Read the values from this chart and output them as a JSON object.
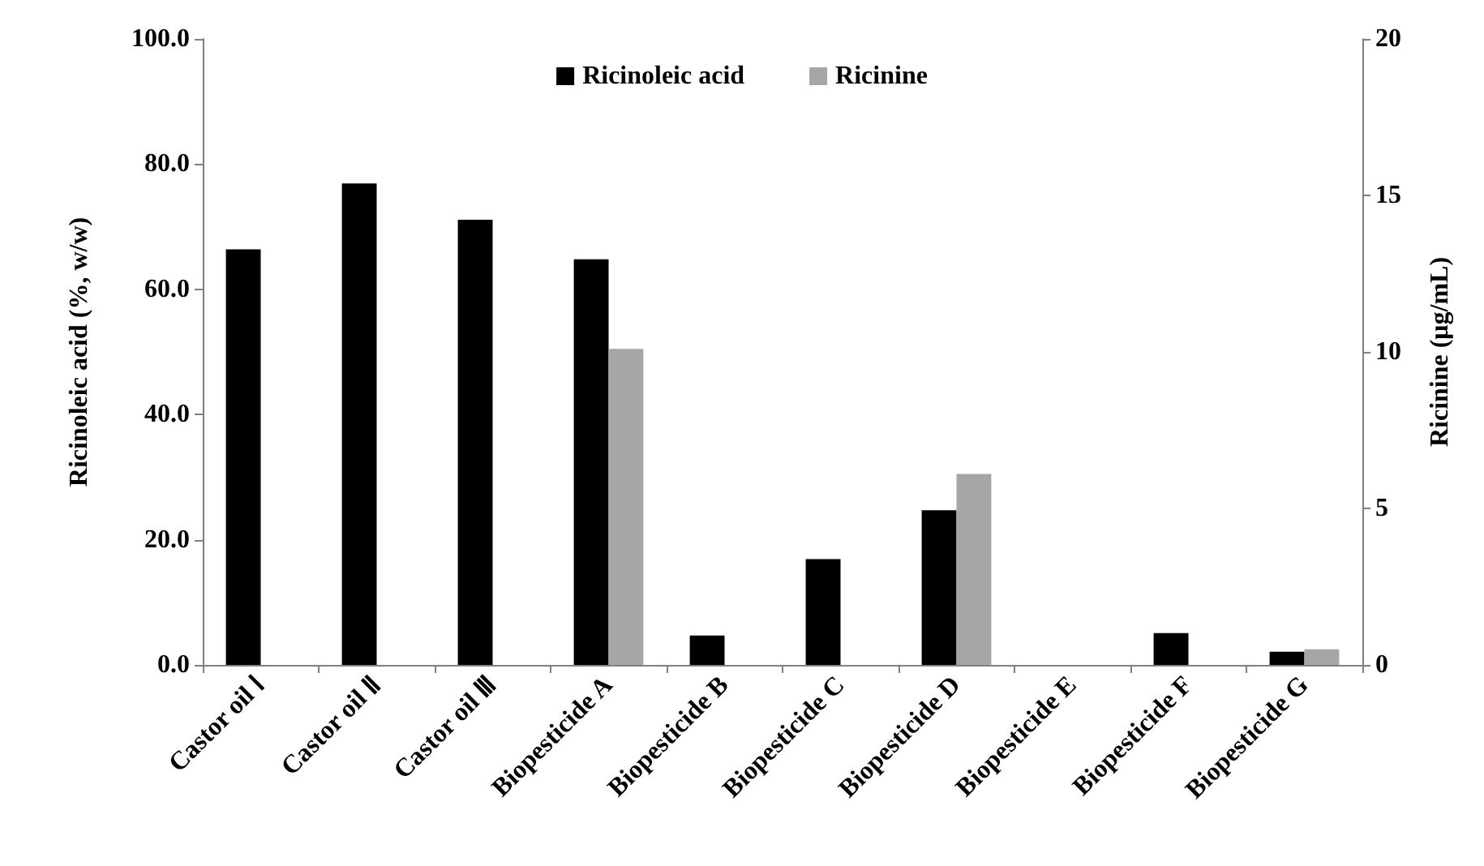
{
  "chart_data": {
    "type": "bar",
    "categories": [
      "Castor oil Ⅰ",
      "Castor oil Ⅱ",
      "Castor oil Ⅲ",
      "Biopesticide A",
      "Biopesticide B",
      "Biopesticide C",
      "Biopesticide D",
      "Biopesticide E",
      "Biopesticide F",
      "Biopesticide G"
    ],
    "series": [
      {
        "name": "Ricinoleic acid",
        "color": "#000000",
        "values": [
          66.4,
          76.9,
          71.1,
          64.8,
          4.7,
          16.9,
          24.7,
          null,
          5.1,
          2.1
        ]
      },
      {
        "name": "Ricinine",
        "color": "#a6a6a6",
        "axis": "y2",
        "values": [
          null,
          null,
          null,
          10.1,
          null,
          null,
          6.1,
          null,
          null,
          0.5
        ]
      }
    ],
    "ylabel": "Ricinoleic acid (%, w/w)",
    "y2label": "Ricinine (μg/mL)",
    "ylim": [
      0,
      100
    ],
    "yticks": [
      {
        "value": 0,
        "label": "0.0"
      },
      {
        "value": 20,
        "label": "20.0"
      },
      {
        "value": 40,
        "label": "40.0"
      },
      {
        "value": 60,
        "label": "60.0"
      },
      {
        "value": 80,
        "label": "80.0"
      },
      {
        "value": 100,
        "label": "100.0"
      }
    ],
    "y2lim": [
      0,
      20
    ],
    "y2ticks": [
      0,
      5,
      10,
      15,
      20
    ],
    "legend": "top",
    "grid": false
  }
}
